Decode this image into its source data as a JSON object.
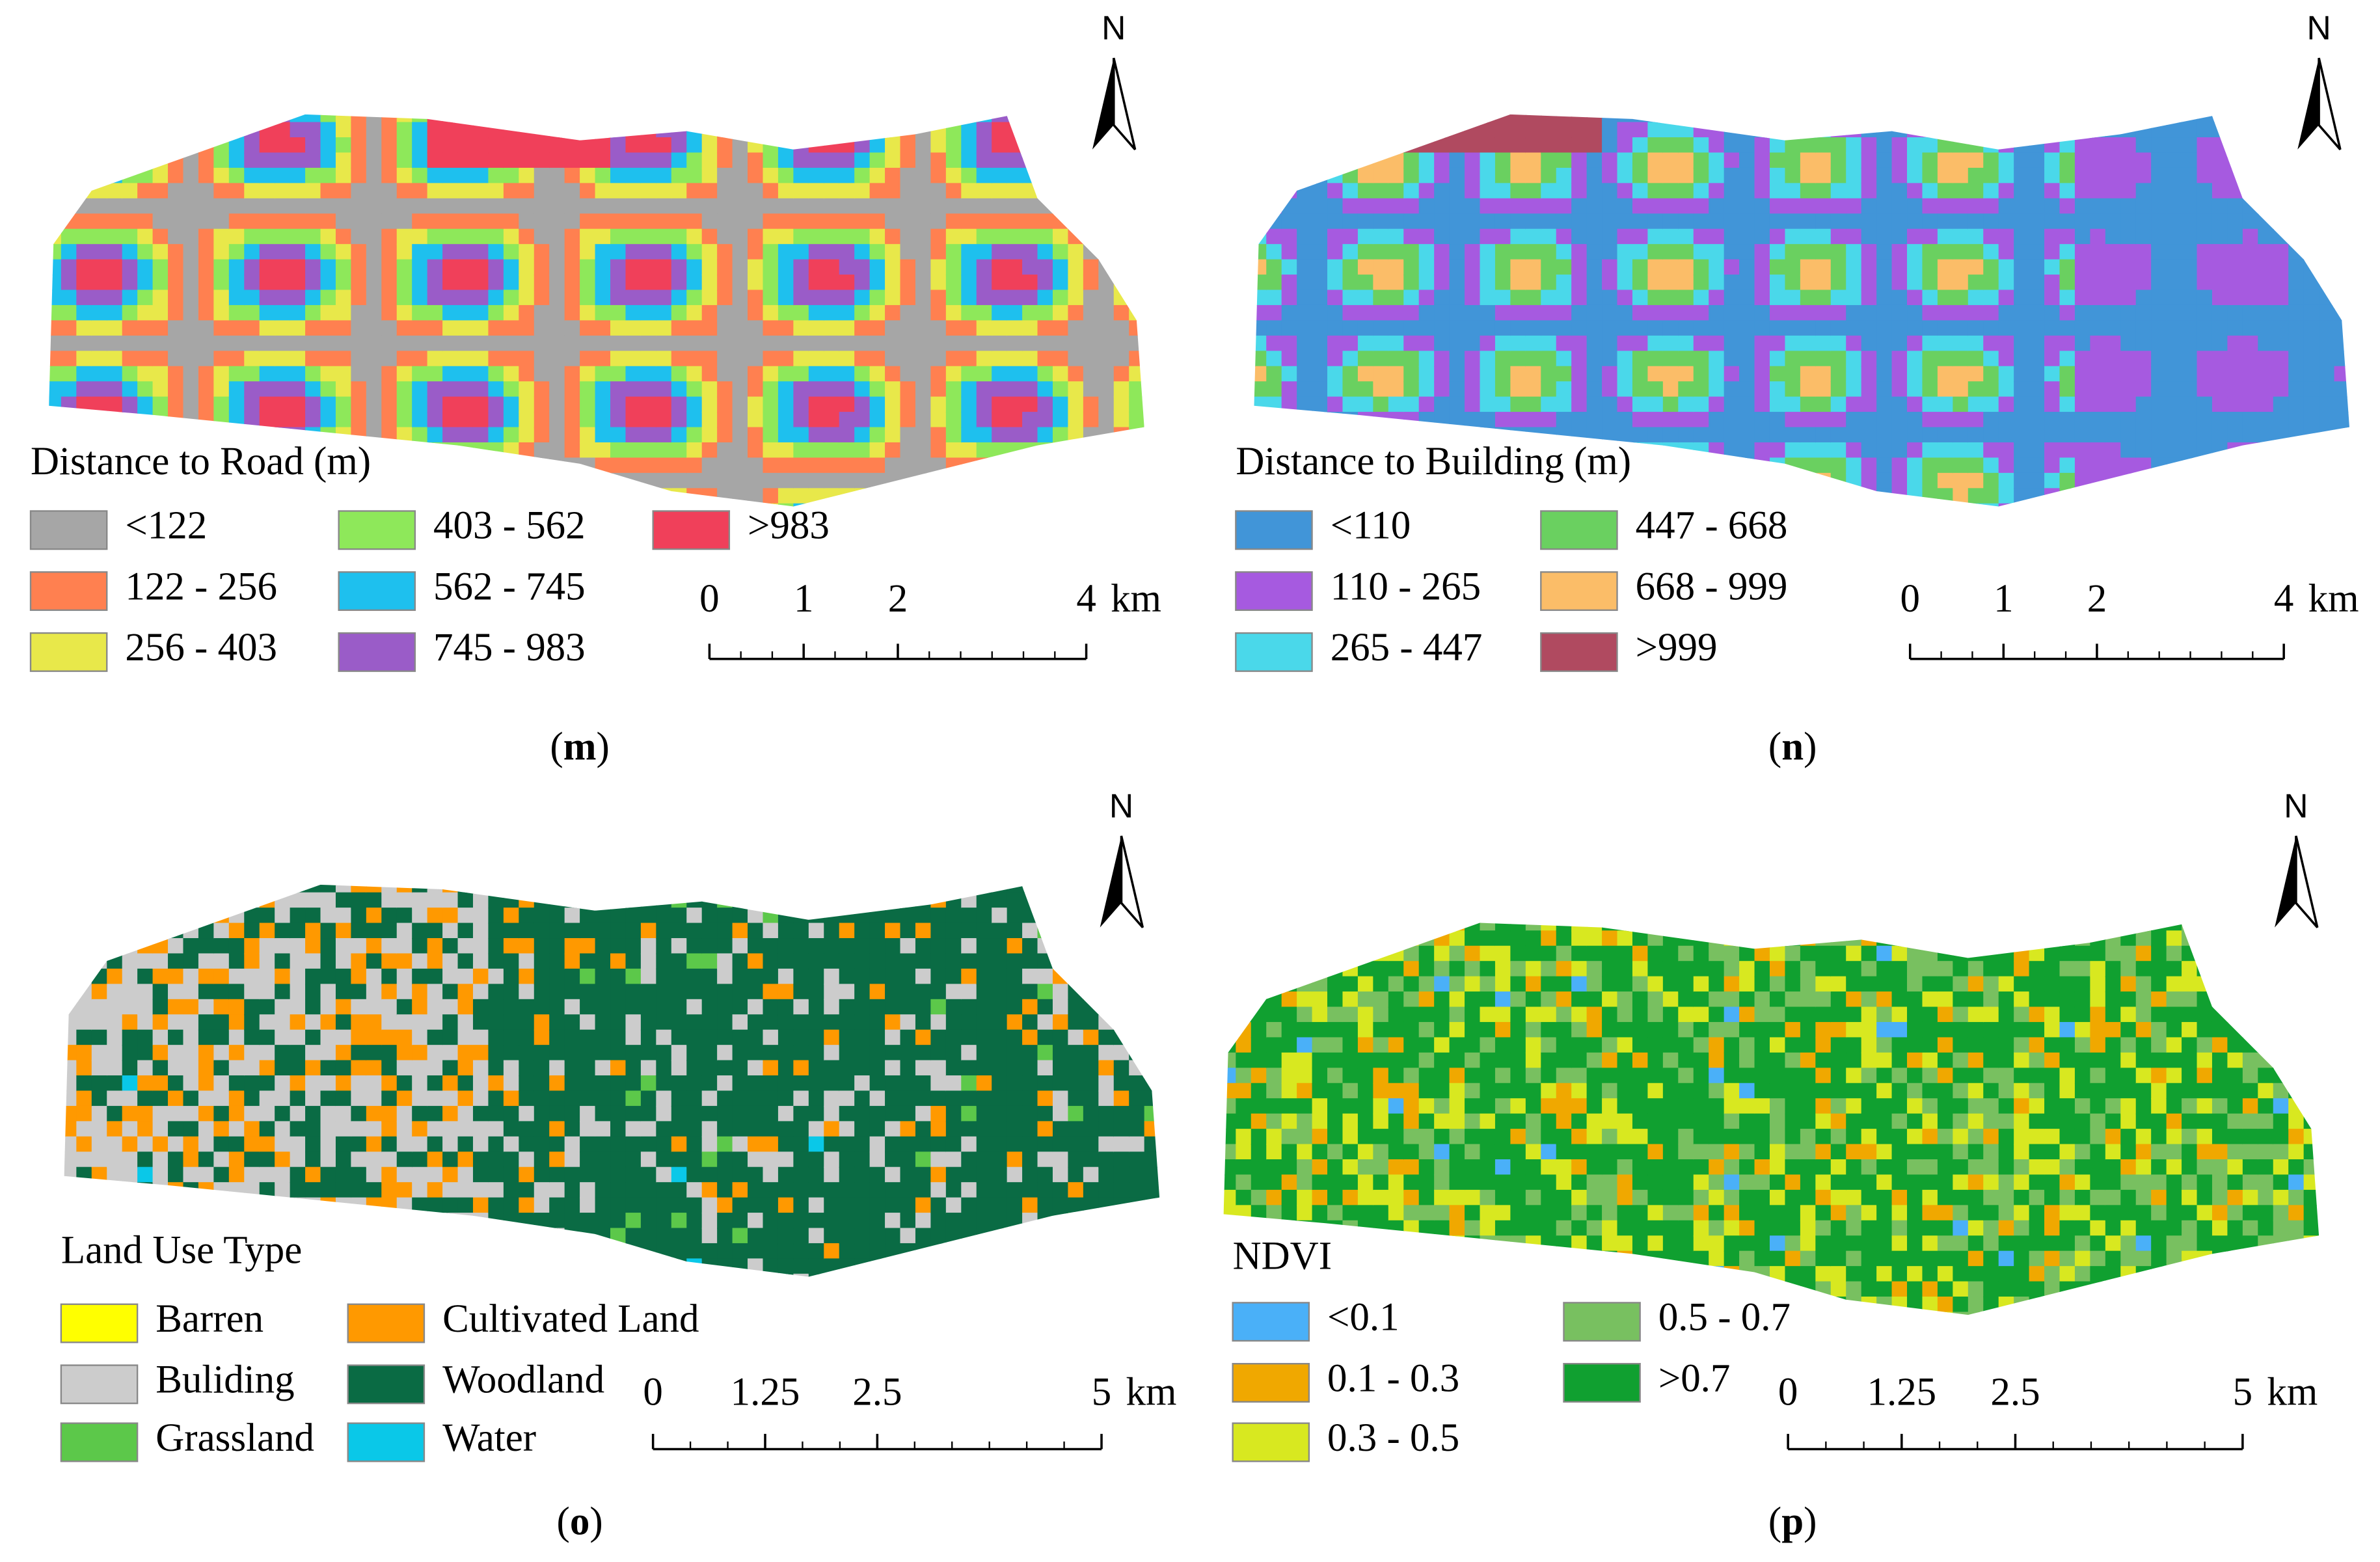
{
  "panels": [
    {
      "caption": {
        "open": "(",
        "letter": "m",
        "close": ")"
      },
      "north": "N",
      "legend_title": "Distance to Road (m)",
      "legend_items": [
        {
          "label": "<122",
          "color": "#a6a6a6"
        },
        {
          "label": "122 - 256",
          "color": "#ff8050"
        },
        {
          "label": "256 - 403",
          "color": "#e8e84a"
        },
        {
          "label": "403 - 562",
          "color": "#8ee85a"
        },
        {
          "label": "562 - 745",
          "color": "#1ec0ee"
        },
        {
          "label": "745 - 983",
          "color": "#9a5cc8"
        },
        {
          "label": ">983",
          "color": "#f0405a"
        }
      ],
      "scale": {
        "ticks": [
          0,
          1,
          2,
          4
        ],
        "unit": "km"
      }
    },
    {
      "caption": {
        "open": "(",
        "letter": "n",
        "close": ")"
      },
      "north": "N",
      "legend_title": "Distance to Building (m)",
      "legend_items": [
        {
          "label": "<110",
          "color": "#4195d8"
        },
        {
          "label": "110 - 265",
          "color": "#a65ae0"
        },
        {
          "label": "265 - 447",
          "color": "#4ad8ea"
        },
        {
          "label": "447 - 668",
          "color": "#6ad060"
        },
        {
          "label": "668 - 999",
          "color": "#fbbd68"
        },
        {
          "label": ">999",
          "color": "#b04a60"
        }
      ],
      "scale": {
        "ticks": [
          0,
          1,
          2,
          4
        ],
        "unit": "km"
      }
    },
    {
      "caption": {
        "open": "(",
        "letter": "o",
        "close": ")"
      },
      "north": "N",
      "legend_title": "Land Use Type",
      "legend_items": [
        {
          "label": "Barren",
          "color": "#ffff00"
        },
        {
          "label": "Buliding",
          "color": "#cccccc"
        },
        {
          "label": "Grassland",
          "color": "#5cc84a"
        },
        {
          "label": "Cultivated Land",
          "color": "#ff9900"
        },
        {
          "label": "Woodland",
          "color": "#0a6b44"
        },
        {
          "label": "Water",
          "color": "#0ac8e8"
        }
      ],
      "scale": {
        "ticks": [
          0,
          1.25,
          2.5,
          5
        ],
        "unit": "km"
      }
    },
    {
      "caption": {
        "open": "(",
        "letter": "p",
        "close": ")"
      },
      "north": "N",
      "legend_title": "NDVI",
      "legend_items": [
        {
          "label": "<0.1",
          "color": "#4ab0f8"
        },
        {
          "label": "0.1 - 0.3",
          "color": "#f0a800"
        },
        {
          "label": "0.3 - 0.5",
          "color": "#d8e820"
        },
        {
          "label": "0.5 - 0.7",
          "color": "#78c060"
        },
        {
          "label": ">0.7",
          "color": "#10a030"
        }
      ],
      "scale": {
        "ticks": [
          0,
          1.25,
          2.5,
          5
        ],
        "unit": "km"
      }
    }
  ]
}
